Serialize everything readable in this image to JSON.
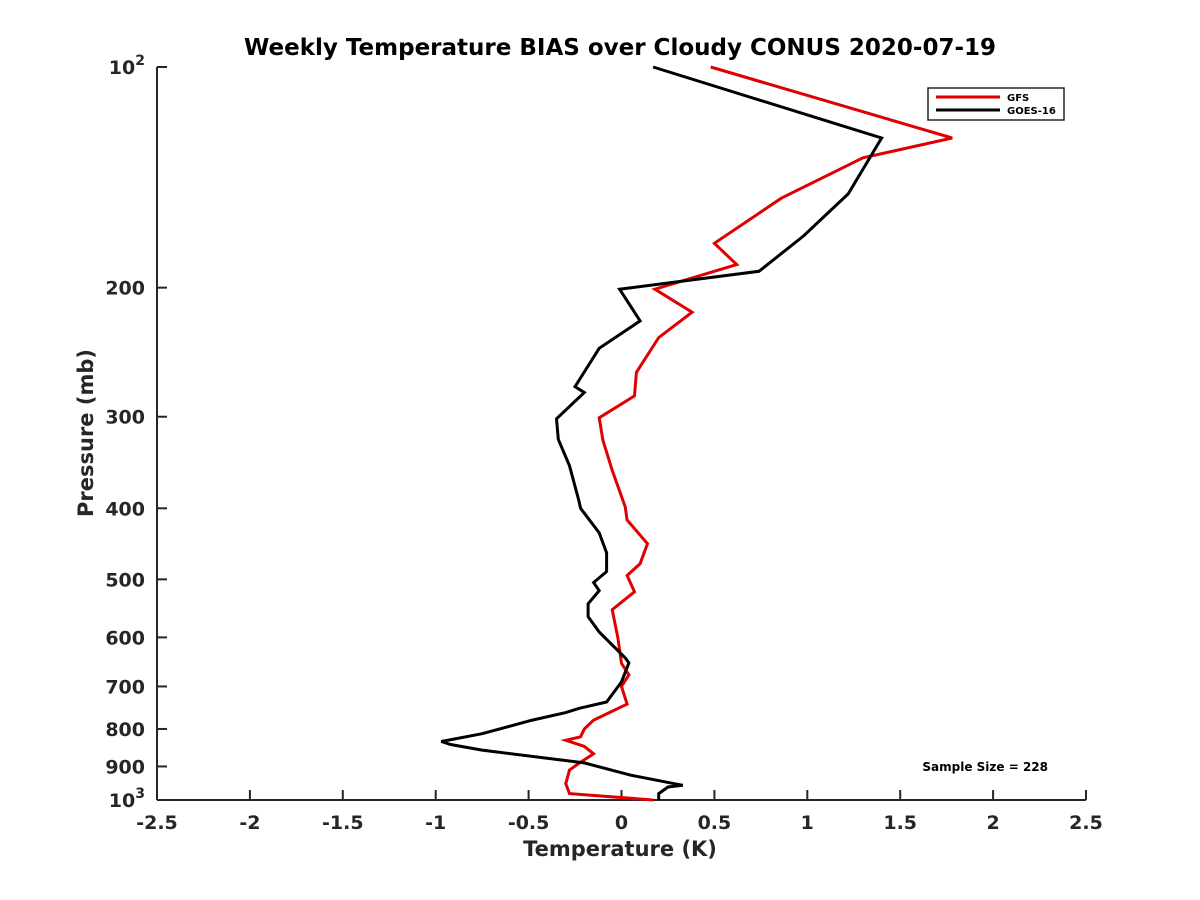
{
  "chart_data": {
    "type": "line",
    "title": "Weekly Temperature BIAS over Cloudy CONUS 2020-07-19",
    "xlabel": "Temperature (K)",
    "ylabel": "Pressure (mb)",
    "xlim": [
      -2.5,
      2.5
    ],
    "ylim": [
      1000,
      100
    ],
    "y_scale": "log",
    "y_reversed": true,
    "grid": false,
    "legend_position": "top-right",
    "x_ticks": [
      -2.5,
      -2,
      -1.5,
      -1,
      -0.5,
      0,
      0.5,
      1,
      1.5,
      2,
      2.5
    ],
    "x_tick_labels": [
      "-2.5",
      "-2",
      "-1.5",
      "-1",
      "-0.5",
      "0",
      "0.5",
      "1",
      "1.5",
      "2",
      "2.5"
    ],
    "y_ticks": [
      {
        "value": 100,
        "label": "10",
        "sup": "2"
      },
      {
        "value": 200,
        "label": "200"
      },
      {
        "value": 300,
        "label": "300"
      },
      {
        "value": 400,
        "label": "400"
      },
      {
        "value": 500,
        "label": "500"
      },
      {
        "value": 600,
        "label": "600"
      },
      {
        "value": 700,
        "label": "700"
      },
      {
        "value": 800,
        "label": "800"
      },
      {
        "value": 900,
        "label": "900"
      },
      {
        "value": 1000,
        "label": "10",
        "sup": "3"
      }
    ],
    "series": [
      {
        "name": "GFS",
        "color": "#e00000",
        "points": [
          [
            0.48,
            100
          ],
          [
            1.78,
            125
          ],
          [
            1.3,
            133
          ],
          [
            0.86,
            151
          ],
          [
            0.5,
            174
          ],
          [
            0.62,
            186
          ],
          [
            0.18,
            201
          ],
          [
            0.38,
            216
          ],
          [
            0.2,
            234
          ],
          [
            0.08,
            261
          ],
          [
            0.07,
            281
          ],
          [
            -0.12,
            301
          ],
          [
            -0.1,
            323
          ],
          [
            -0.05,
            355
          ],
          [
            0.02,
            398
          ],
          [
            0.03,
            415
          ],
          [
            0.14,
            447
          ],
          [
            0.1,
            476
          ],
          [
            0.03,
            494
          ],
          [
            0.07,
            520
          ],
          [
            -0.05,
            550
          ],
          [
            -0.02,
            600
          ],
          [
            0.0,
            651
          ],
          [
            0.04,
            675
          ],
          [
            0.0,
            700
          ],
          [
            0.03,
            740
          ],
          [
            -0.15,
            778
          ],
          [
            -0.2,
            800
          ],
          [
            -0.22,
            820
          ],
          [
            -0.3,
            829
          ],
          [
            -0.2,
            845
          ],
          [
            -0.15,
            865
          ],
          [
            -0.22,
            888
          ],
          [
            -0.28,
            910
          ],
          [
            -0.3,
            950
          ],
          [
            -0.28,
            980
          ],
          [
            0.17,
            1000
          ]
        ]
      },
      {
        "name": "GOES-16",
        "color": "#000000",
        "points": [
          [
            0.17,
            100
          ],
          [
            1.4,
            125
          ],
          [
            1.22,
            149
          ],
          [
            0.98,
            170
          ],
          [
            0.74,
            190
          ],
          [
            -0.01,
            201
          ],
          [
            0.1,
            222
          ],
          [
            -0.12,
            242
          ],
          [
            -0.25,
            273
          ],
          [
            -0.2,
            278
          ],
          [
            -0.35,
            302
          ],
          [
            -0.34,
            322
          ],
          [
            -0.28,
            350
          ],
          [
            -0.23,
            390
          ],
          [
            -0.22,
            400
          ],
          [
            -0.12,
            432
          ],
          [
            -0.08,
            460
          ],
          [
            -0.08,
            488
          ],
          [
            -0.15,
            505
          ],
          [
            -0.12,
            518
          ],
          [
            -0.18,
            540
          ],
          [
            -0.18,
            562
          ],
          [
            -0.12,
            590
          ],
          [
            0.02,
            640
          ],
          [
            0.04,
            650
          ],
          [
            0.0,
            690
          ],
          [
            -0.08,
            735
          ],
          [
            -0.23,
            750
          ],
          [
            -0.3,
            760
          ],
          [
            -0.48,
            778
          ],
          [
            -0.75,
            812
          ],
          [
            -0.97,
            832
          ],
          [
            -0.92,
            840
          ],
          [
            -0.75,
            855
          ],
          [
            -0.2,
            890
          ],
          [
            0.05,
            925
          ],
          [
            0.33,
            955
          ],
          [
            0.25,
            960
          ],
          [
            0.2,
            980
          ],
          [
            0.2,
            1000
          ]
        ]
      }
    ],
    "annotation": "Sample Size = 228"
  }
}
